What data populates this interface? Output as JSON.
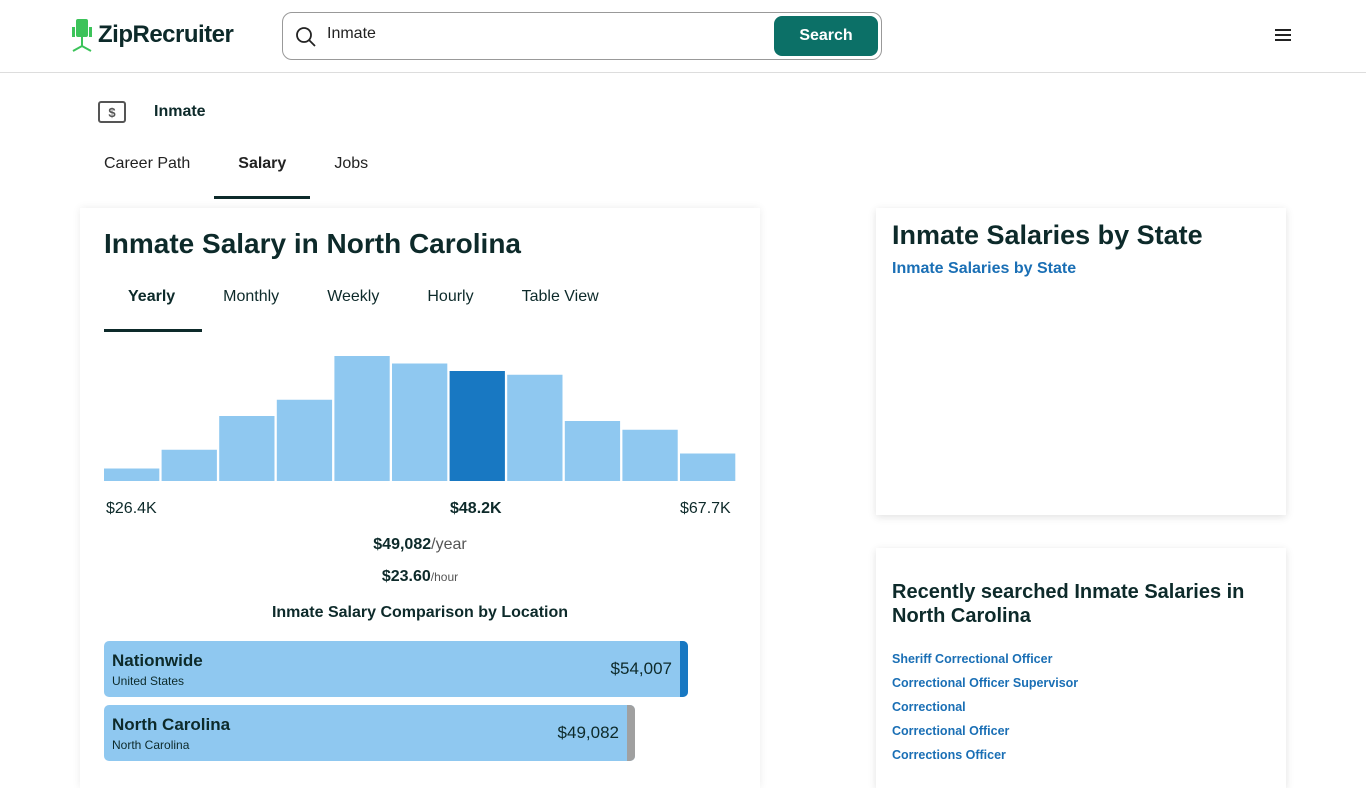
{
  "header": {
    "logo": "ZipRecruiter",
    "search_value": "Inmate",
    "search_button": "Search"
  },
  "job_title": "Inmate",
  "nav": [
    "Career Path",
    "Salary",
    "Jobs"
  ],
  "main": {
    "title": "Inmate Salary in North Carolina",
    "tabs": [
      "Yearly",
      "Monthly",
      "Weekly",
      "Hourly",
      "Table View"
    ],
    "histogram": {
      "relative_heights": [
        10,
        25,
        52,
        65,
        100,
        94,
        88,
        85,
        48,
        41,
        22
      ],
      "highlight_index": 6,
      "colors": {
        "bar": "#8fc8f0",
        "highlight": "#1878c2"
      }
    },
    "labels": {
      "min": "$26.4K",
      "mid": "$48.2K",
      "max": "$67.7K"
    },
    "yearly": "$49,082",
    "yearly_unit": "/year",
    "hourly": "$23.60",
    "hourly_unit": "/hour",
    "comparison_title": "Inmate Salary Comparison by Location",
    "comparison": [
      {
        "name": "Nationwide",
        "sub": "United States",
        "value": "$54,007",
        "edge": "#1878c2"
      },
      {
        "name": "North Carolina",
        "sub": "North Carolina",
        "value": "$49,082",
        "edge": "#a0a0a0"
      }
    ]
  },
  "side": {
    "state_title": "Inmate Salaries by State",
    "state_img_alt": "Inmate Salaries by State",
    "recent_title": "Recently searched Inmate Salaries in North Carolina",
    "recent": [
      "Sheriff Correctional Officer",
      "Correctional Officer Supervisor",
      "Correctional",
      "Correctional Officer",
      "Corrections Officer"
    ]
  }
}
